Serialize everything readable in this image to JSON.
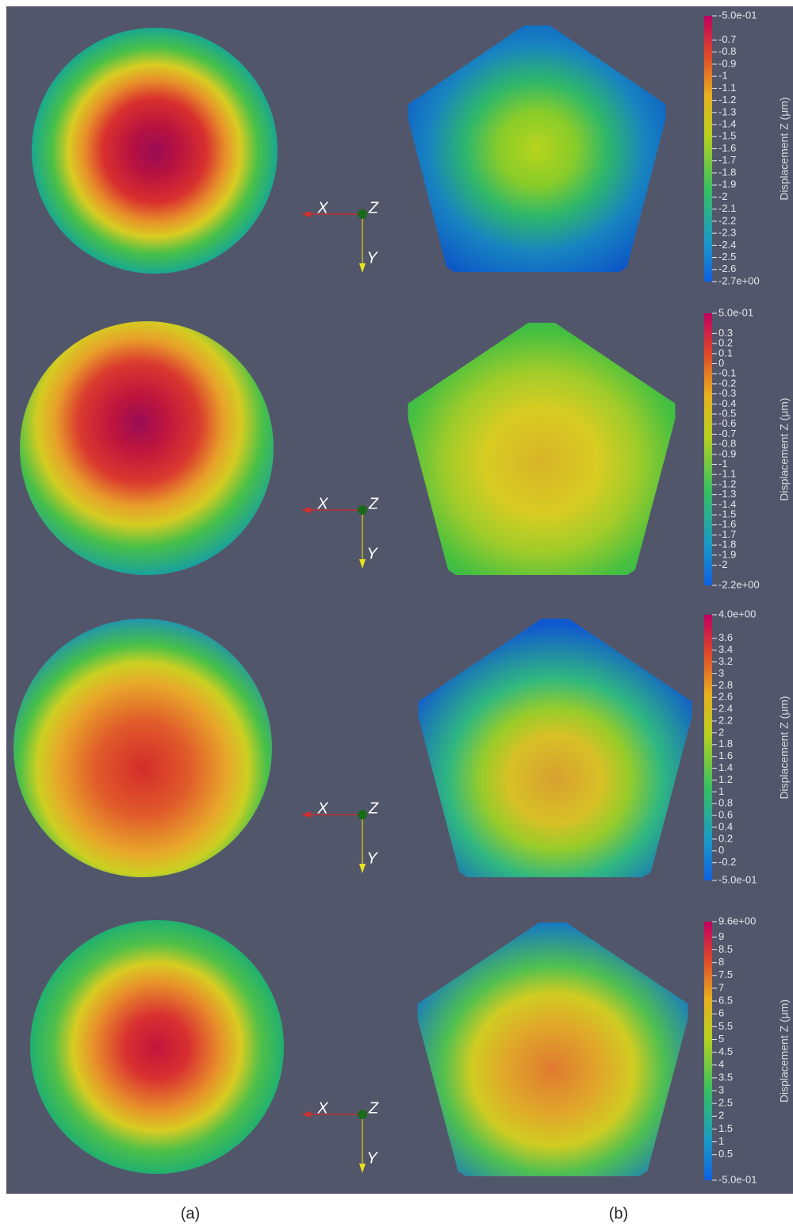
{
  "panels": [
    {
      "colorbar": {
        "title": "Displacement Z (μm)",
        "ticks": [
          {
            "value": -0.5,
            "label": "-5.0e-01"
          },
          -0.7,
          -0.8,
          -0.9,
          -1,
          -1.1,
          -1.2,
          -1.3,
          -1.4,
          -1.5,
          -1.6,
          -1.7,
          -1.8,
          -1.9,
          -2,
          -2.1,
          -2.2,
          -2.3,
          -2.4,
          -2.5,
          -2.6,
          {
            "value": -2.7,
            "label": "-2.7e+00"
          }
        ]
      },
      "axes": {
        "x": "X",
        "z": "Z",
        "y": "Y"
      }
    },
    {
      "colorbar": {
        "title": "Displacement Z (μm)",
        "ticks": [
          {
            "value": 0.5,
            "label": "5.0e-01"
          },
          0.3,
          0.2,
          0.1,
          0,
          -0.1,
          -0.2,
          -0.3,
          -0.4,
          -0.5,
          -0.6,
          -0.7,
          -0.8,
          -0.9,
          -1,
          -1.1,
          -1.2,
          -1.3,
          -1.4,
          -1.5,
          -1.6,
          -1.7,
          -1.8,
          -1.9,
          -2,
          {
            "value": -2.2,
            "label": "-2.2e+00"
          }
        ]
      },
      "axes": {
        "x": "X",
        "z": "Z",
        "y": "Y"
      }
    },
    {
      "colorbar": {
        "title": "Displacement Z (μm)",
        "ticks": [
          {
            "value": 4,
            "label": "4.0e+00"
          },
          3.6,
          3.4,
          3.2,
          3,
          2.8,
          2.6,
          2.4,
          2.2,
          2,
          1.8,
          1.6,
          1.4,
          1.2,
          1,
          0.8,
          0.6,
          0.4,
          0.2,
          0,
          -0.2,
          {
            "value": -0.5,
            "label": "-5.0e-01"
          }
        ]
      },
      "axes": {
        "x": "X",
        "z": "Z",
        "y": "Y"
      }
    },
    {
      "colorbar": {
        "title": "Displacement Z (μm)",
        "ticks": [
          {
            "value": 9.6,
            "label": "9.6e+00"
          },
          9,
          8.5,
          8,
          7.5,
          7,
          6.5,
          6,
          5.5,
          5,
          4.5,
          4,
          3.5,
          3,
          2.5,
          2,
          1.5,
          1,
          0.5,
          {
            "value": -0.5,
            "label": "-5.0e-01"
          }
        ]
      },
      "axes": {
        "x": "X",
        "z": "Z",
        "y": "Y"
      }
    }
  ],
  "captions": [
    "(a)",
    "(b)"
  ]
}
